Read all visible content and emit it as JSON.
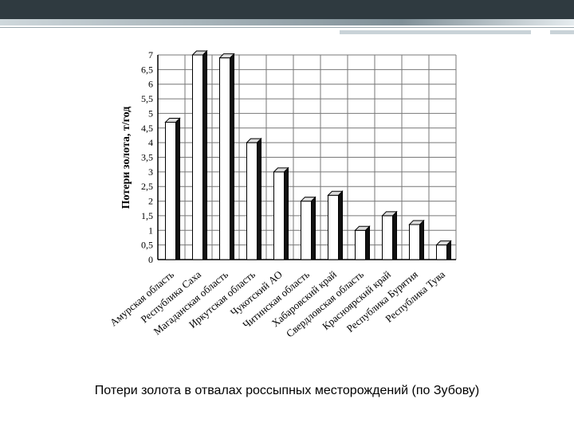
{
  "caption": "Потери золота в отвалах россыпных месторождений (по Зубову)",
  "chart_data": {
    "type": "bar",
    "title": "",
    "xlabel": "",
    "ylabel": "Потери золота, т/год",
    "ylim": [
      0,
      7
    ],
    "yticks": [
      "0",
      "0,5",
      "1",
      "1,5",
      "2",
      "2,5",
      "3",
      "3,5",
      "4",
      "4,5",
      "5",
      "5,5",
      "6",
      "6,5",
      "7"
    ],
    "grid": true,
    "categories": [
      "Амурская область",
      "Республика Саха",
      "Магаданская область",
      "Иркутская область",
      "Чукотский АО",
      "Читинская область",
      "Хабаровский край",
      "Свердловская область",
      "Красноярский край",
      "Республика Бурятия",
      "Республика Тува"
    ],
    "values": [
      4.7,
      7.0,
      6.9,
      4.0,
      3.0,
      2.0,
      2.2,
      1.0,
      1.5,
      1.2,
      0.5
    ],
    "colors": {
      "bar_face": "#ffffff",
      "bar_side": "#111111",
      "grid": "#777777"
    }
  }
}
